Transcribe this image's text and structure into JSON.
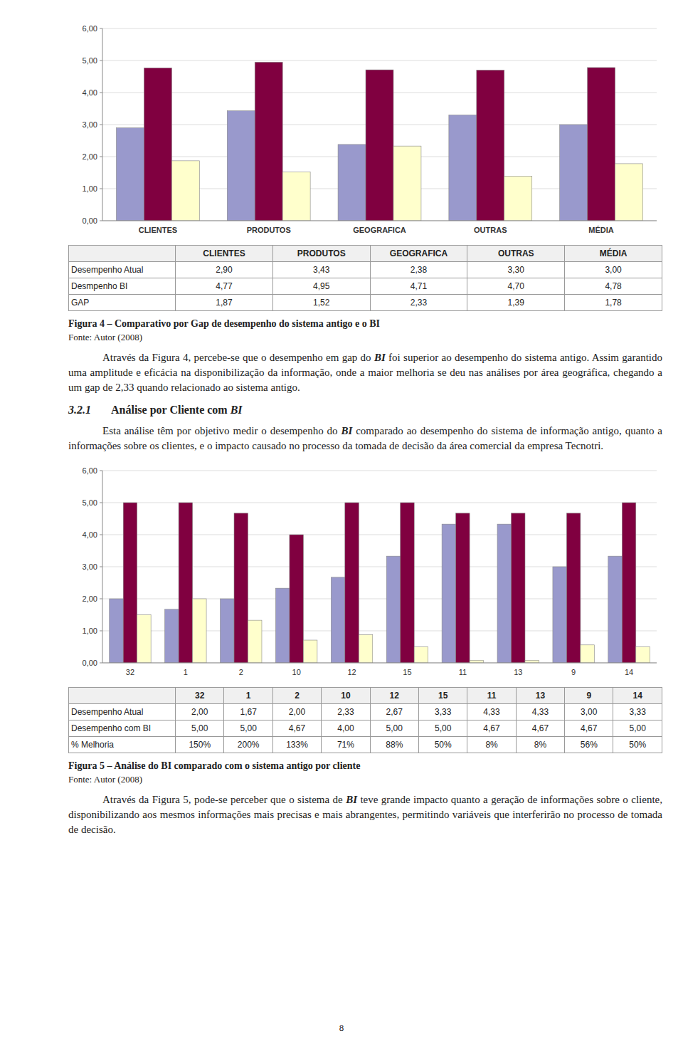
{
  "chart_data": [
    {
      "type": "bar",
      "title": "Figura 4 – Comparativo por Gap de desempenho do sistema antigo e o BI",
      "annotations": [
        "Fonte: Autor (2008)"
      ],
      "categories": [
        "CLIENTES",
        "PRODUTOS",
        "GEOGRAFICA",
        "OUTRAS",
        "MÉDIA"
      ],
      "series": [
        {
          "name": "Desempenho Atual",
          "color": "#9999cc",
          "values": [
            2.9,
            3.43,
            2.38,
            3.3,
            3.0
          ],
          "value_labels": [
            "2,90",
            "3,43",
            "2,38",
            "3,30",
            "3,00"
          ]
        },
        {
          "name": "Desmpenho BI",
          "color": "#800040",
          "values": [
            4.77,
            4.95,
            4.71,
            4.7,
            4.78
          ],
          "value_labels": [
            "4,77",
            "4,95",
            "4,71",
            "4,70",
            "4,78"
          ]
        },
        {
          "name": "GAP",
          "color": "#ffffcc",
          "values": [
            1.87,
            1.52,
            2.33,
            1.39,
            1.78
          ],
          "value_labels": [
            "1,87",
            "1,52",
            "2,33",
            "1,39",
            "1,78"
          ]
        }
      ],
      "ylim": [
        0,
        6.0
      ],
      "yticks": [
        {
          "value": 0,
          "label": "0,00"
        },
        {
          "value": 1,
          "label": "1,00"
        },
        {
          "value": 2,
          "label": "2,00"
        },
        {
          "value": 3,
          "label": "3,00"
        },
        {
          "value": 4,
          "label": "4,00"
        },
        {
          "value": 5,
          "label": "5,00"
        },
        {
          "value": 6,
          "label": "6,00"
        }
      ],
      "grid": true
    },
    {
      "type": "bar",
      "title": "Figura 5 – Análise do BI comparado com o sistema antigo por cliente",
      "annotations": [
        "Fonte: Autor (2008)"
      ],
      "categories": [
        "32",
        "1",
        "2",
        "10",
        "12",
        "15",
        "11",
        "13",
        "9",
        "14"
      ],
      "series": [
        {
          "name": "Desempenho Atual",
          "color": "#9999cc",
          "values": [
            2.0,
            1.67,
            2.0,
            2.33,
            2.67,
            3.33,
            4.33,
            4.33,
            3.0,
            3.33
          ],
          "value_labels": [
            "2,00",
            "1,67",
            "2,00",
            "2,33",
            "2,67",
            "3,33",
            "4,33",
            "4,33",
            "3,00",
            "3,33"
          ]
        },
        {
          "name": "Desempenho com BI",
          "color": "#800040",
          "values": [
            5.0,
            5.0,
            4.67,
            4.0,
            5.0,
            5.0,
            4.67,
            4.67,
            4.67,
            5.0
          ],
          "value_labels": [
            "5,00",
            "5,00",
            "4,67",
            "4,00",
            "5,00",
            "5,00",
            "4,67",
            "4,67",
            "4,67",
            "5,00"
          ]
        },
        {
          "name": "% Melhoria",
          "color": "#ffffcc",
          "values": [
            1.5,
            2.0,
            1.33,
            0.71,
            0.88,
            0.5,
            0.08,
            0.08,
            0.56,
            0.5
          ],
          "value_labels": [
            "150%",
            "200%",
            "133%",
            "71%",
            "88%",
            "50%",
            "8%",
            "8%",
            "56%",
            "50%"
          ]
        }
      ],
      "ylim": [
        0,
        6.0
      ],
      "yticks": [
        {
          "value": 0,
          "label": "0,00"
        },
        {
          "value": 1,
          "label": "1,00"
        },
        {
          "value": 2,
          "label": "2,00"
        },
        {
          "value": 3,
          "label": "3,00"
        },
        {
          "value": 4,
          "label": "4,00"
        },
        {
          "value": 5,
          "label": "5,00"
        },
        {
          "value": 6,
          "label": "6,00"
        }
      ],
      "grid": true
    }
  ],
  "text_blocks": [
    {
      "kind": "paragraph",
      "segments": [
        {
          "text": "Através da Figura 4, percebe-se que o desempenho em gap do ",
          "style": "normal"
        },
        {
          "text": "BI",
          "style": "bold-italic"
        },
        {
          "text": " foi superior ao desempenho do sistema antigo. Assim garantido uma amplitude e eficácia na disponibilização da informação, onde a maior melhoria se deu nas análises por área geográfica, chegando a um gap de 2,33 quando relacionado ao sistema antigo.",
          "style": "normal"
        }
      ]
    },
    {
      "kind": "heading",
      "segments": [
        {
          "text": "3.2.1",
          "style": "bold-italic"
        },
        {
          "text": "Análise por Cliente com ",
          "style": "bold"
        },
        {
          "text": "BI",
          "style": "bold-italic"
        }
      ]
    },
    {
      "kind": "paragraph",
      "segments": [
        {
          "text": "Esta análise têm por objetivo medir o desempenho do ",
          "style": "normal"
        },
        {
          "text": "BI",
          "style": "bold-italic"
        },
        {
          "text": " comparado ao desempenho do sistema de informação antigo, quanto a informações sobre os clientes, e o impacto causado no processo da tomada de decisão da área comercial da empresa Tecnotri.",
          "style": "normal"
        }
      ]
    },
    {
      "kind": "paragraph",
      "segments": [
        {
          "text": "Através da Figura 5, pode-se perceber que o sistema de ",
          "style": "normal"
        },
        {
          "text": "BI",
          "style": "bold-italic"
        },
        {
          "text": " teve grande impacto quanto a geração de informações sobre o cliente, disponibilizando aos mesmos informações mais precisas e mais abrangentes, permitindo variáveis que interferirão no processo de tomada de decisão.",
          "style": "normal"
        }
      ]
    }
  ],
  "page_number": "8"
}
